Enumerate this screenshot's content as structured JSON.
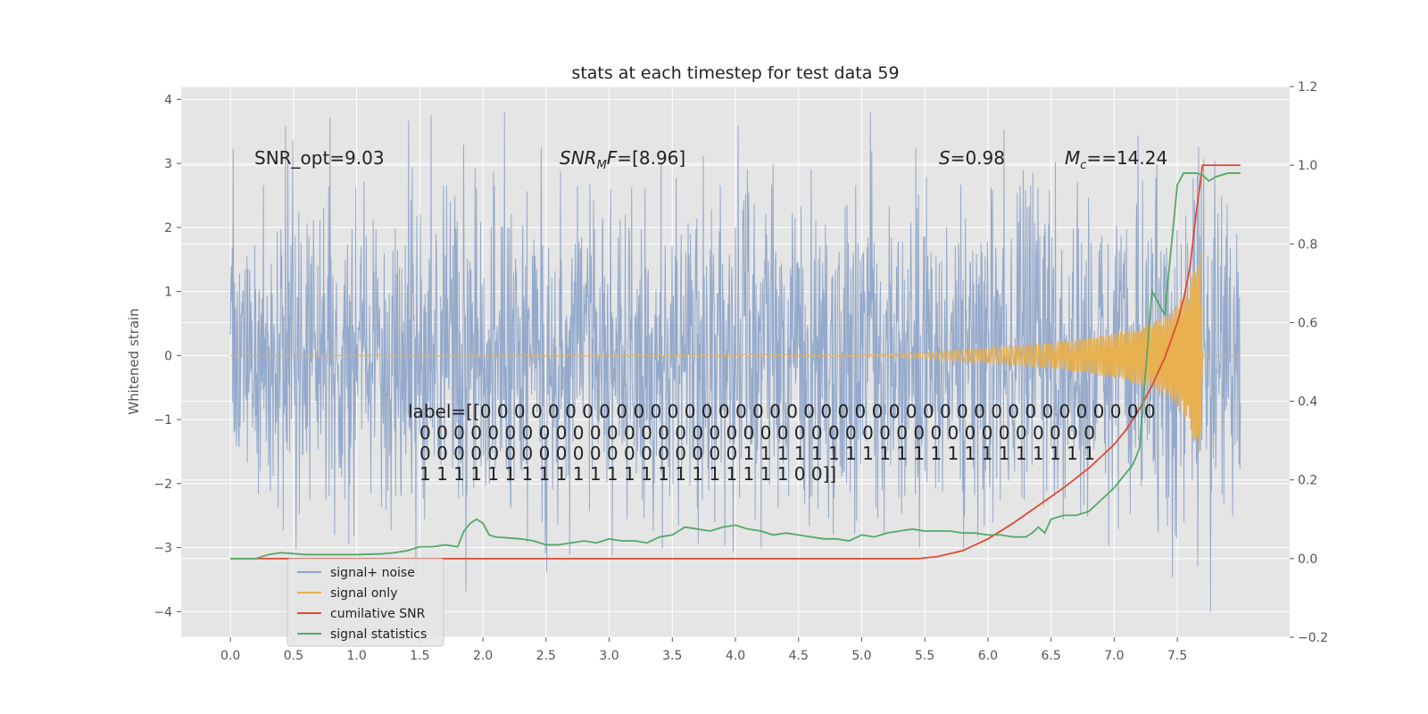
{
  "chart_data": {
    "type": "line",
    "title": "stats at each timestep for test data 59",
    "ylabel": "Whitened strain",
    "ylabel_right": "",
    "xlabel": "",
    "xlim": [
      -0.39,
      8.39
    ],
    "ylim": [
      -4.4,
      4.2
    ],
    "ylim_right": [
      -0.2,
      1.2
    ],
    "x_ticks": [
      "0.0",
      "0.5",
      "1.0",
      "1.5",
      "2.0",
      "2.5",
      "3.0",
      "3.5",
      "4.0",
      "4.5",
      "5.0",
      "5.5",
      "6.0",
      "6.5",
      "7.0",
      "7.5"
    ],
    "y_ticks": [
      "4",
      "3",
      "2",
      "1",
      "0",
      "−1",
      "−2",
      "−3",
      "−4"
    ],
    "y_ticks_right": [
      "1.2",
      "1.0",
      "0.8",
      "0.6",
      "0.4",
      "0.2",
      "0.0",
      "−0.2"
    ],
    "grid": true,
    "legend_position": "lower-left",
    "annotations": {
      "snr_opt": "SNR_opt=9.03",
      "snr_mf": "[8.96]",
      "s": "=0.98",
      "mc": "=14.24",
      "label_line1": "label=[[0 0 0 0 0 0 0 0 0 0 0 0 0 0 0 0 0 0 0 0 0 0 0 0 0 0 0 0 0 0 0 0 0 0 0 0 0 0 0 0",
      "label_line2": "0 0 0 0 0 0 0 0 0 0 0 0 0 0 0 0 0 0 0 0 0 0 0 0 0 0 0 0 0 0 0 0 0 0 0 0 0 0 0 0",
      "label_line3": "0 0 0 0 0 0 0 0 0 0 0 0 0 0 0 0 0 0 0 1 1 1 1 1 1 1 1 1 1 1 1 1 1 1 1 1 1 1 1 1",
      "label_line4": "1 1 1 1 1 1 1 1 1 1 1 1 1 1 1 1 1 1 1 1 1 1 0 0]]"
    },
    "series": [
      {
        "name": "signal+ noise",
        "color": "#8fa5c9",
        "axis": "left",
        "x_range": [
          0.0,
          8.0
        ],
        "amplitude_typical": 2.0,
        "peak_max": 3.8,
        "peak_min": -4.0
      },
      {
        "name": "signal only",
        "color": "#e8b04f",
        "axis": "left",
        "x": [
          0,
          5.0,
          5.5,
          6.0,
          6.5,
          7.0,
          7.2,
          7.4,
          7.5,
          7.6,
          7.65,
          7.68,
          7.7,
          8.0
        ],
        "envelope": [
          0,
          0.02,
          0.05,
          0.12,
          0.2,
          0.35,
          0.45,
          0.6,
          0.8,
          1.1,
          1.6,
          1.9,
          0,
          0
        ]
      },
      {
        "name": "cumilative SNR",
        "color": "#e24a33",
        "axis": "right",
        "x": [
          0,
          1,
          2,
          3,
          4,
          5,
          5.45,
          5.6,
          5.8,
          6.0,
          6.2,
          6.4,
          6.6,
          6.8,
          7.0,
          7.1,
          7.2,
          7.3,
          7.4,
          7.5,
          7.55,
          7.6,
          7.65,
          7.68,
          7.7,
          8.0
        ],
        "y": [
          0,
          0,
          0,
          0,
          0,
          0,
          0,
          0.005,
          0.02,
          0.05,
          0.09,
          0.135,
          0.18,
          0.23,
          0.29,
          0.33,
          0.38,
          0.44,
          0.51,
          0.6,
          0.66,
          0.74,
          0.88,
          0.95,
          1.0,
          1.0
        ]
      },
      {
        "name": "signal statistics",
        "color": "#55a868",
        "axis": "right",
        "x": [
          0.0,
          0.2,
          0.3,
          0.4,
          0.6,
          0.8,
          1.0,
          1.2,
          1.3,
          1.4,
          1.5,
          1.6,
          1.7,
          1.8,
          1.85,
          1.9,
          1.95,
          2.0,
          2.05,
          2.1,
          2.3,
          2.4,
          2.5,
          2.6,
          2.7,
          2.8,
          2.9,
          3.0,
          3.1,
          3.2,
          3.3,
          3.4,
          3.5,
          3.6,
          3.7,
          3.8,
          3.9,
          4.0,
          4.1,
          4.2,
          4.3,
          4.4,
          4.5,
          4.6,
          4.7,
          4.8,
          4.9,
          5.0,
          5.1,
          5.2,
          5.3,
          5.4,
          5.5,
          5.6,
          5.7,
          5.8,
          5.9,
          6.0,
          6.1,
          6.2,
          6.3,
          6.35,
          6.4,
          6.45,
          6.5,
          6.6,
          6.7,
          6.8,
          6.9,
          7.0,
          7.05,
          7.1,
          7.15,
          7.2,
          7.3,
          7.4,
          7.5,
          7.55,
          7.6,
          7.65,
          7.7,
          7.75,
          7.8,
          7.9,
          8.0
        ],
        "y": [
          0.0,
          0.0,
          0.01,
          0.015,
          0.01,
          0.01,
          0.01,
          0.012,
          0.015,
          0.02,
          0.03,
          0.03,
          0.035,
          0.03,
          0.07,
          0.09,
          0.1,
          0.09,
          0.06,
          0.055,
          0.05,
          0.045,
          0.035,
          0.035,
          0.04,
          0.045,
          0.04,
          0.05,
          0.045,
          0.045,
          0.04,
          0.055,
          0.06,
          0.08,
          0.075,
          0.07,
          0.08,
          0.085,
          0.075,
          0.07,
          0.06,
          0.065,
          0.06,
          0.055,
          0.05,
          0.05,
          0.045,
          0.06,
          0.055,
          0.065,
          0.07,
          0.075,
          0.07,
          0.07,
          0.07,
          0.065,
          0.065,
          0.06,
          0.06,
          0.055,
          0.055,
          0.065,
          0.08,
          0.065,
          0.1,
          0.11,
          0.11,
          0.12,
          0.15,
          0.18,
          0.2,
          0.22,
          0.24,
          0.28,
          0.68,
          0.62,
          0.95,
          0.98,
          0.98,
          0.98,
          0.975,
          0.96,
          0.97,
          0.98,
          0.98
        ]
      }
    ]
  }
}
